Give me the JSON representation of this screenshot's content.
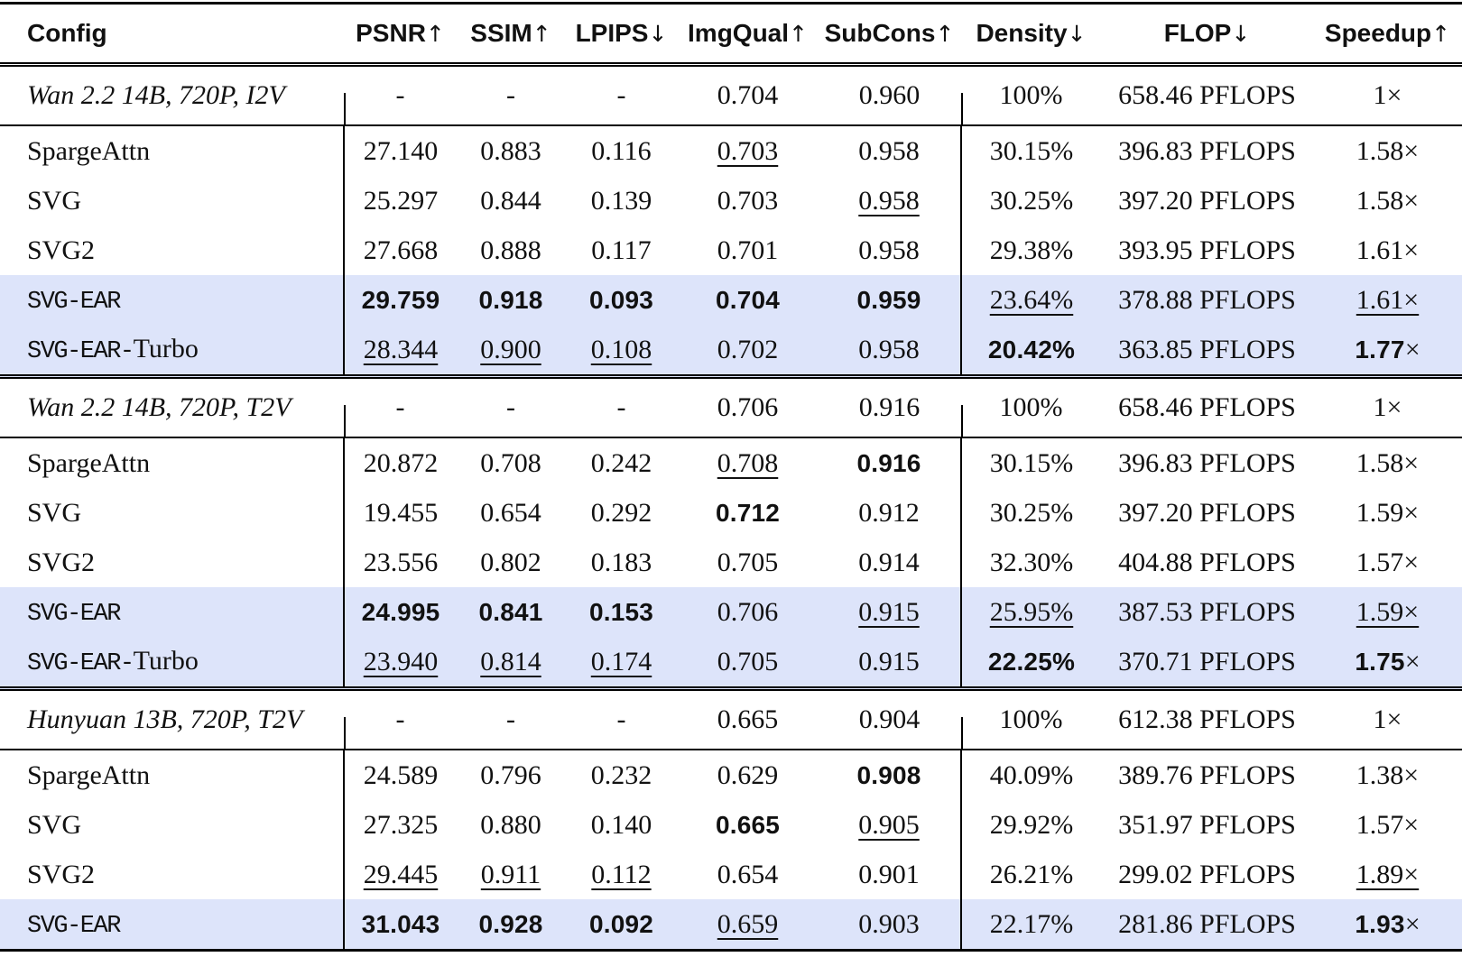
{
  "colors": {
    "highlight": "#dde4fa",
    "rule": "#000000",
    "text": "#111111"
  },
  "table": {
    "columns": [
      {
        "label": "Config",
        "arrow": ""
      },
      {
        "label": "PSNR",
        "arrow": "↑"
      },
      {
        "label": "SSIM",
        "arrow": "↑"
      },
      {
        "label": "LPIPS",
        "arrow": "↓"
      },
      {
        "label": "ImgQual",
        "arrow": "↑"
      },
      {
        "label": "SubCons",
        "arrow": "↑"
      },
      {
        "label": "Density",
        "arrow": "↓"
      },
      {
        "label": "FLOP",
        "arrow": "↓"
      },
      {
        "label": "Speedup",
        "arrow": "↑"
      }
    ],
    "sections": [
      {
        "header": {
          "label": "Wan 2.2 14B, 720P, I2V",
          "cells": [
            {
              "t": "-"
            },
            {
              "t": "-"
            },
            {
              "t": "-"
            },
            {
              "t": "0.704"
            },
            {
              "t": "0.960"
            },
            {
              "t": "100%"
            },
            {
              "t": "658.46 PFLOPS"
            },
            {
              "t": "1×"
            }
          ]
        },
        "rows": [
          {
            "mono": "",
            "serif": "SpargeAttn",
            "highlight": false,
            "cells": [
              {
                "t": "27.140"
              },
              {
                "t": "0.883"
              },
              {
                "t": "0.116"
              },
              {
                "t": "0.703",
                "u": true
              },
              {
                "t": "0.958"
              },
              {
                "t": "30.15%"
              },
              {
                "t": "396.83 PFLOPS"
              },
              {
                "t": "1.58×"
              }
            ]
          },
          {
            "mono": "",
            "serif": "SVG",
            "highlight": false,
            "cells": [
              {
                "t": "25.297"
              },
              {
                "t": "0.844"
              },
              {
                "t": "0.139"
              },
              {
                "t": "0.703"
              },
              {
                "t": "0.958",
                "u": true
              },
              {
                "t": "30.25%"
              },
              {
                "t": "397.20 PFLOPS"
              },
              {
                "t": "1.58×"
              }
            ]
          },
          {
            "mono": "",
            "serif": "SVG2",
            "highlight": false,
            "cells": [
              {
                "t": "27.668"
              },
              {
                "t": "0.888"
              },
              {
                "t": "0.117"
              },
              {
                "t": "0.701"
              },
              {
                "t": "0.958"
              },
              {
                "t": "29.38%"
              },
              {
                "t": "393.95 PFLOPS"
              },
              {
                "t": "1.61×"
              }
            ]
          },
          {
            "mono": "SVG-EAR",
            "serif": "",
            "highlight": true,
            "cells": [
              {
                "t": "29.759",
                "b": true
              },
              {
                "t": "0.918",
                "b": true
              },
              {
                "t": "0.093",
                "b": true
              },
              {
                "t": "0.704",
                "b": true
              },
              {
                "t": "0.959",
                "b": true
              },
              {
                "t": "23.64%",
                "u": true
              },
              {
                "t": "378.88 PFLOPS"
              },
              {
                "t": "1.61×",
                "u": true
              }
            ]
          },
          {
            "mono": "SVG-EAR-",
            "serif": "Turbo",
            "highlight": true,
            "cells": [
              {
                "t": "28.344",
                "u": true
              },
              {
                "t": "0.900",
                "u": true
              },
              {
                "t": "0.108",
                "u": true
              },
              {
                "t": "0.702"
              },
              {
                "t": "0.958"
              },
              {
                "t": "20.42%",
                "b": true
              },
              {
                "t": "363.85 PFLOPS"
              },
              {
                "t": "1.77",
                "b": true,
                "x": true
              }
            ]
          }
        ]
      },
      {
        "header": {
          "label": "Wan 2.2 14B, 720P, T2V",
          "cells": [
            {
              "t": "-"
            },
            {
              "t": "-"
            },
            {
              "t": "-"
            },
            {
              "t": "0.706"
            },
            {
              "t": "0.916"
            },
            {
              "t": "100%"
            },
            {
              "t": "658.46 PFLOPS"
            },
            {
              "t": "1×"
            }
          ]
        },
        "rows": [
          {
            "mono": "",
            "serif": "SpargeAttn",
            "highlight": false,
            "cells": [
              {
                "t": "20.872"
              },
              {
                "t": "0.708"
              },
              {
                "t": "0.242"
              },
              {
                "t": "0.708",
                "u": true
              },
              {
                "t": "0.916",
                "b": true
              },
              {
                "t": "30.15%"
              },
              {
                "t": "396.83 PFLOPS"
              },
              {
                "t": "1.58×"
              }
            ]
          },
          {
            "mono": "",
            "serif": "SVG",
            "highlight": false,
            "cells": [
              {
                "t": "19.455"
              },
              {
                "t": "0.654"
              },
              {
                "t": "0.292"
              },
              {
                "t": "0.712",
                "b": true
              },
              {
                "t": "0.912"
              },
              {
                "t": "30.25%"
              },
              {
                "t": "397.20 PFLOPS"
              },
              {
                "t": "1.59×"
              }
            ]
          },
          {
            "mono": "",
            "serif": "SVG2",
            "highlight": false,
            "cells": [
              {
                "t": "23.556"
              },
              {
                "t": "0.802"
              },
              {
                "t": "0.183"
              },
              {
                "t": "0.705"
              },
              {
                "t": "0.914"
              },
              {
                "t": "32.30%"
              },
              {
                "t": "404.88 PFLOPS"
              },
              {
                "t": "1.57×"
              }
            ]
          },
          {
            "mono": "SVG-EAR",
            "serif": "",
            "highlight": true,
            "cells": [
              {
                "t": "24.995",
                "b": true
              },
              {
                "t": "0.841",
                "b": true
              },
              {
                "t": "0.153",
                "b": true
              },
              {
                "t": "0.706"
              },
              {
                "t": "0.915",
                "u": true
              },
              {
                "t": "25.95%",
                "u": true
              },
              {
                "t": "387.53 PFLOPS"
              },
              {
                "t": "1.59×",
                "u": true
              }
            ]
          },
          {
            "mono": "SVG-EAR-",
            "serif": "Turbo",
            "highlight": true,
            "cells": [
              {
                "t": "23.940",
                "u": true
              },
              {
                "t": "0.814",
                "u": true
              },
              {
                "t": "0.174",
                "u": true
              },
              {
                "t": "0.705"
              },
              {
                "t": "0.915"
              },
              {
                "t": "22.25%",
                "b": true
              },
              {
                "t": "370.71 PFLOPS"
              },
              {
                "t": "1.75",
                "b": true,
                "x": true
              }
            ]
          }
        ]
      },
      {
        "header": {
          "label": "Hunyuan 13B, 720P, T2V",
          "cells": [
            {
              "t": "-"
            },
            {
              "t": "-"
            },
            {
              "t": "-"
            },
            {
              "t": "0.665"
            },
            {
              "t": "0.904"
            },
            {
              "t": "100%"
            },
            {
              "t": "612.38 PFLOPS"
            },
            {
              "t": "1×"
            }
          ]
        },
        "rows": [
          {
            "mono": "",
            "serif": "SpargeAttn",
            "highlight": false,
            "cells": [
              {
                "t": "24.589"
              },
              {
                "t": "0.796"
              },
              {
                "t": "0.232"
              },
              {
                "t": "0.629"
              },
              {
                "t": "0.908",
                "b": true
              },
              {
                "t": "40.09%"
              },
              {
                "t": "389.76 PFLOPS"
              },
              {
                "t": "1.38×"
              }
            ]
          },
          {
            "mono": "",
            "serif": "SVG",
            "highlight": false,
            "cells": [
              {
                "t": "27.325"
              },
              {
                "t": "0.880"
              },
              {
                "t": "0.140"
              },
              {
                "t": "0.665",
                "b": true
              },
              {
                "t": "0.905",
                "u": true
              },
              {
                "t": "29.92%"
              },
              {
                "t": "351.97 PFLOPS"
              },
              {
                "t": "1.57×"
              }
            ]
          },
          {
            "mono": "",
            "serif": "SVG2",
            "highlight": false,
            "cells": [
              {
                "t": "29.445",
                "u": true
              },
              {
                "t": "0.911",
                "u": true
              },
              {
                "t": "0.112",
                "u": true
              },
              {
                "t": "0.654"
              },
              {
                "t": "0.901"
              },
              {
                "t": "26.21%"
              },
              {
                "t": "299.02 PFLOPS"
              },
              {
                "t": "1.89×",
                "u": true
              }
            ]
          },
          {
            "mono": "SVG-EAR",
            "serif": "",
            "highlight": true,
            "cells": [
              {
                "t": "31.043",
                "b": true
              },
              {
                "t": "0.928",
                "b": true
              },
              {
                "t": "0.092",
                "b": true
              },
              {
                "t": "0.659",
                "u": true
              },
              {
                "t": "0.903"
              },
              {
                "t": "22.17%"
              },
              {
                "t": "281.86 PFLOPS"
              },
              {
                "t": "1.93",
                "b": true,
                "x": true
              }
            ]
          }
        ]
      }
    ]
  }
}
